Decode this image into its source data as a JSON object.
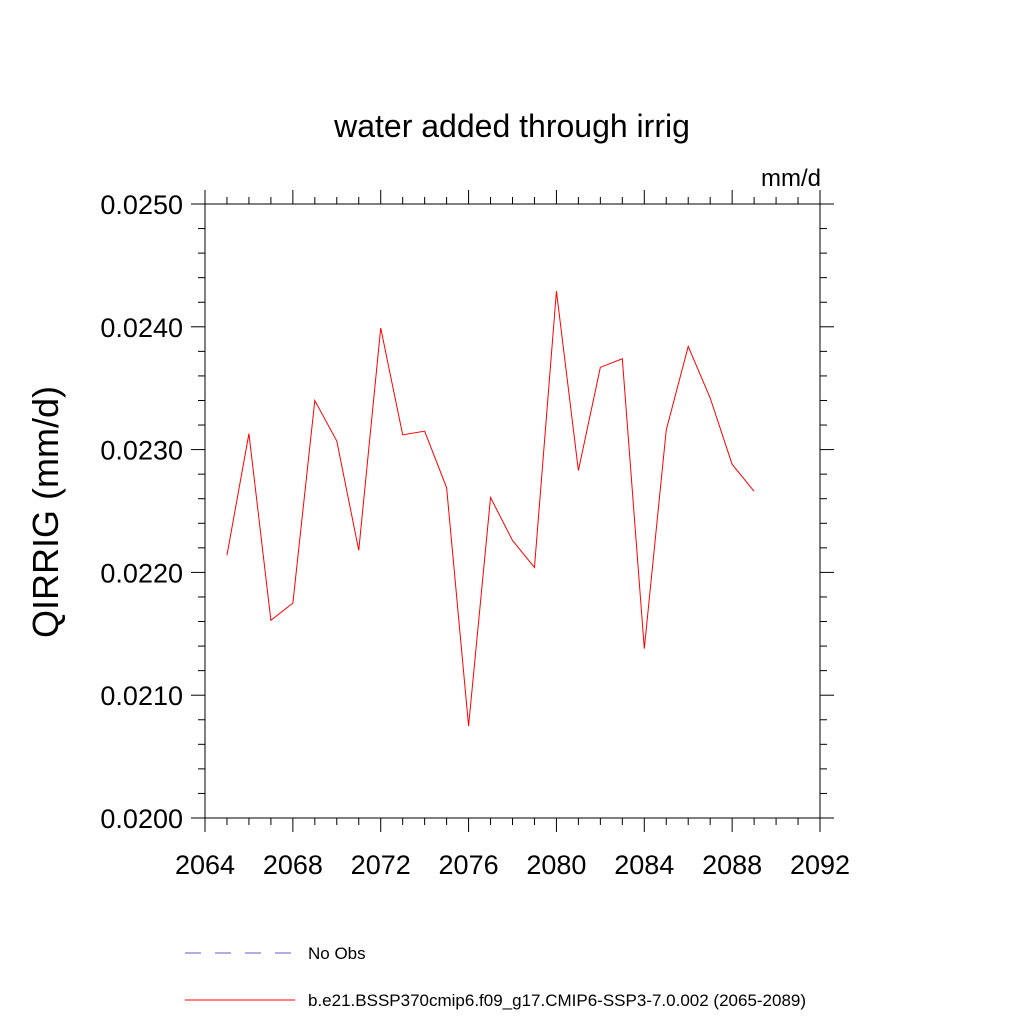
{
  "chart_data": {
    "type": "line",
    "title": "water added through irrig",
    "units": "mm/d",
    "ylabel": "QIRRIG  (mm/d)",
    "xlabel": "",
    "xlim": [
      2064,
      2092
    ],
    "ylim": [
      0.02,
      0.025
    ],
    "x_ticks": [
      "2064",
      "2068",
      "2072",
      "2076",
      "2080",
      "2084",
      "2088",
      "2092"
    ],
    "y_ticks": [
      "0.0200",
      "0.0210",
      "0.0220",
      "0.0230",
      "0.0240",
      "0.0250"
    ],
    "grid": false,
    "series": [
      {
        "name": "b.e21.BSSP370cmip6.f09_g17.CMIP6-SSP3-7.0.002 (2065-2089)",
        "color": "#ff0000",
        "x": [
          2065,
          2066,
          2067,
          2068,
          2069,
          2070,
          2071,
          2072,
          2073,
          2074,
          2075,
          2076,
          2077,
          2078,
          2079,
          2080,
          2081,
          2082,
          2083,
          2084,
          2085,
          2086,
          2087,
          2088,
          2089
        ],
        "values": [
          0.02214,
          0.02313,
          0.02161,
          0.02175,
          0.0234,
          0.02307,
          0.02218,
          0.02399,
          0.02312,
          0.02315,
          0.02269,
          0.02075,
          0.02261,
          0.02226,
          0.02204,
          0.02429,
          0.02283,
          0.02367,
          0.02374,
          0.02138,
          0.02316,
          0.02384,
          0.02342,
          0.02288,
          0.02266
        ]
      }
    ],
    "legend": {
      "placement": "bottom",
      "entries": [
        {
          "label": "No Obs",
          "color": "#6a5acd",
          "style": "dashed"
        },
        {
          "label": "b.e21.BSSP370cmip6.f09_g17.CMIP6-SSP3-7.0.002 (2065-2089)",
          "color": "#ff0000",
          "style": "solid"
        }
      ]
    }
  }
}
